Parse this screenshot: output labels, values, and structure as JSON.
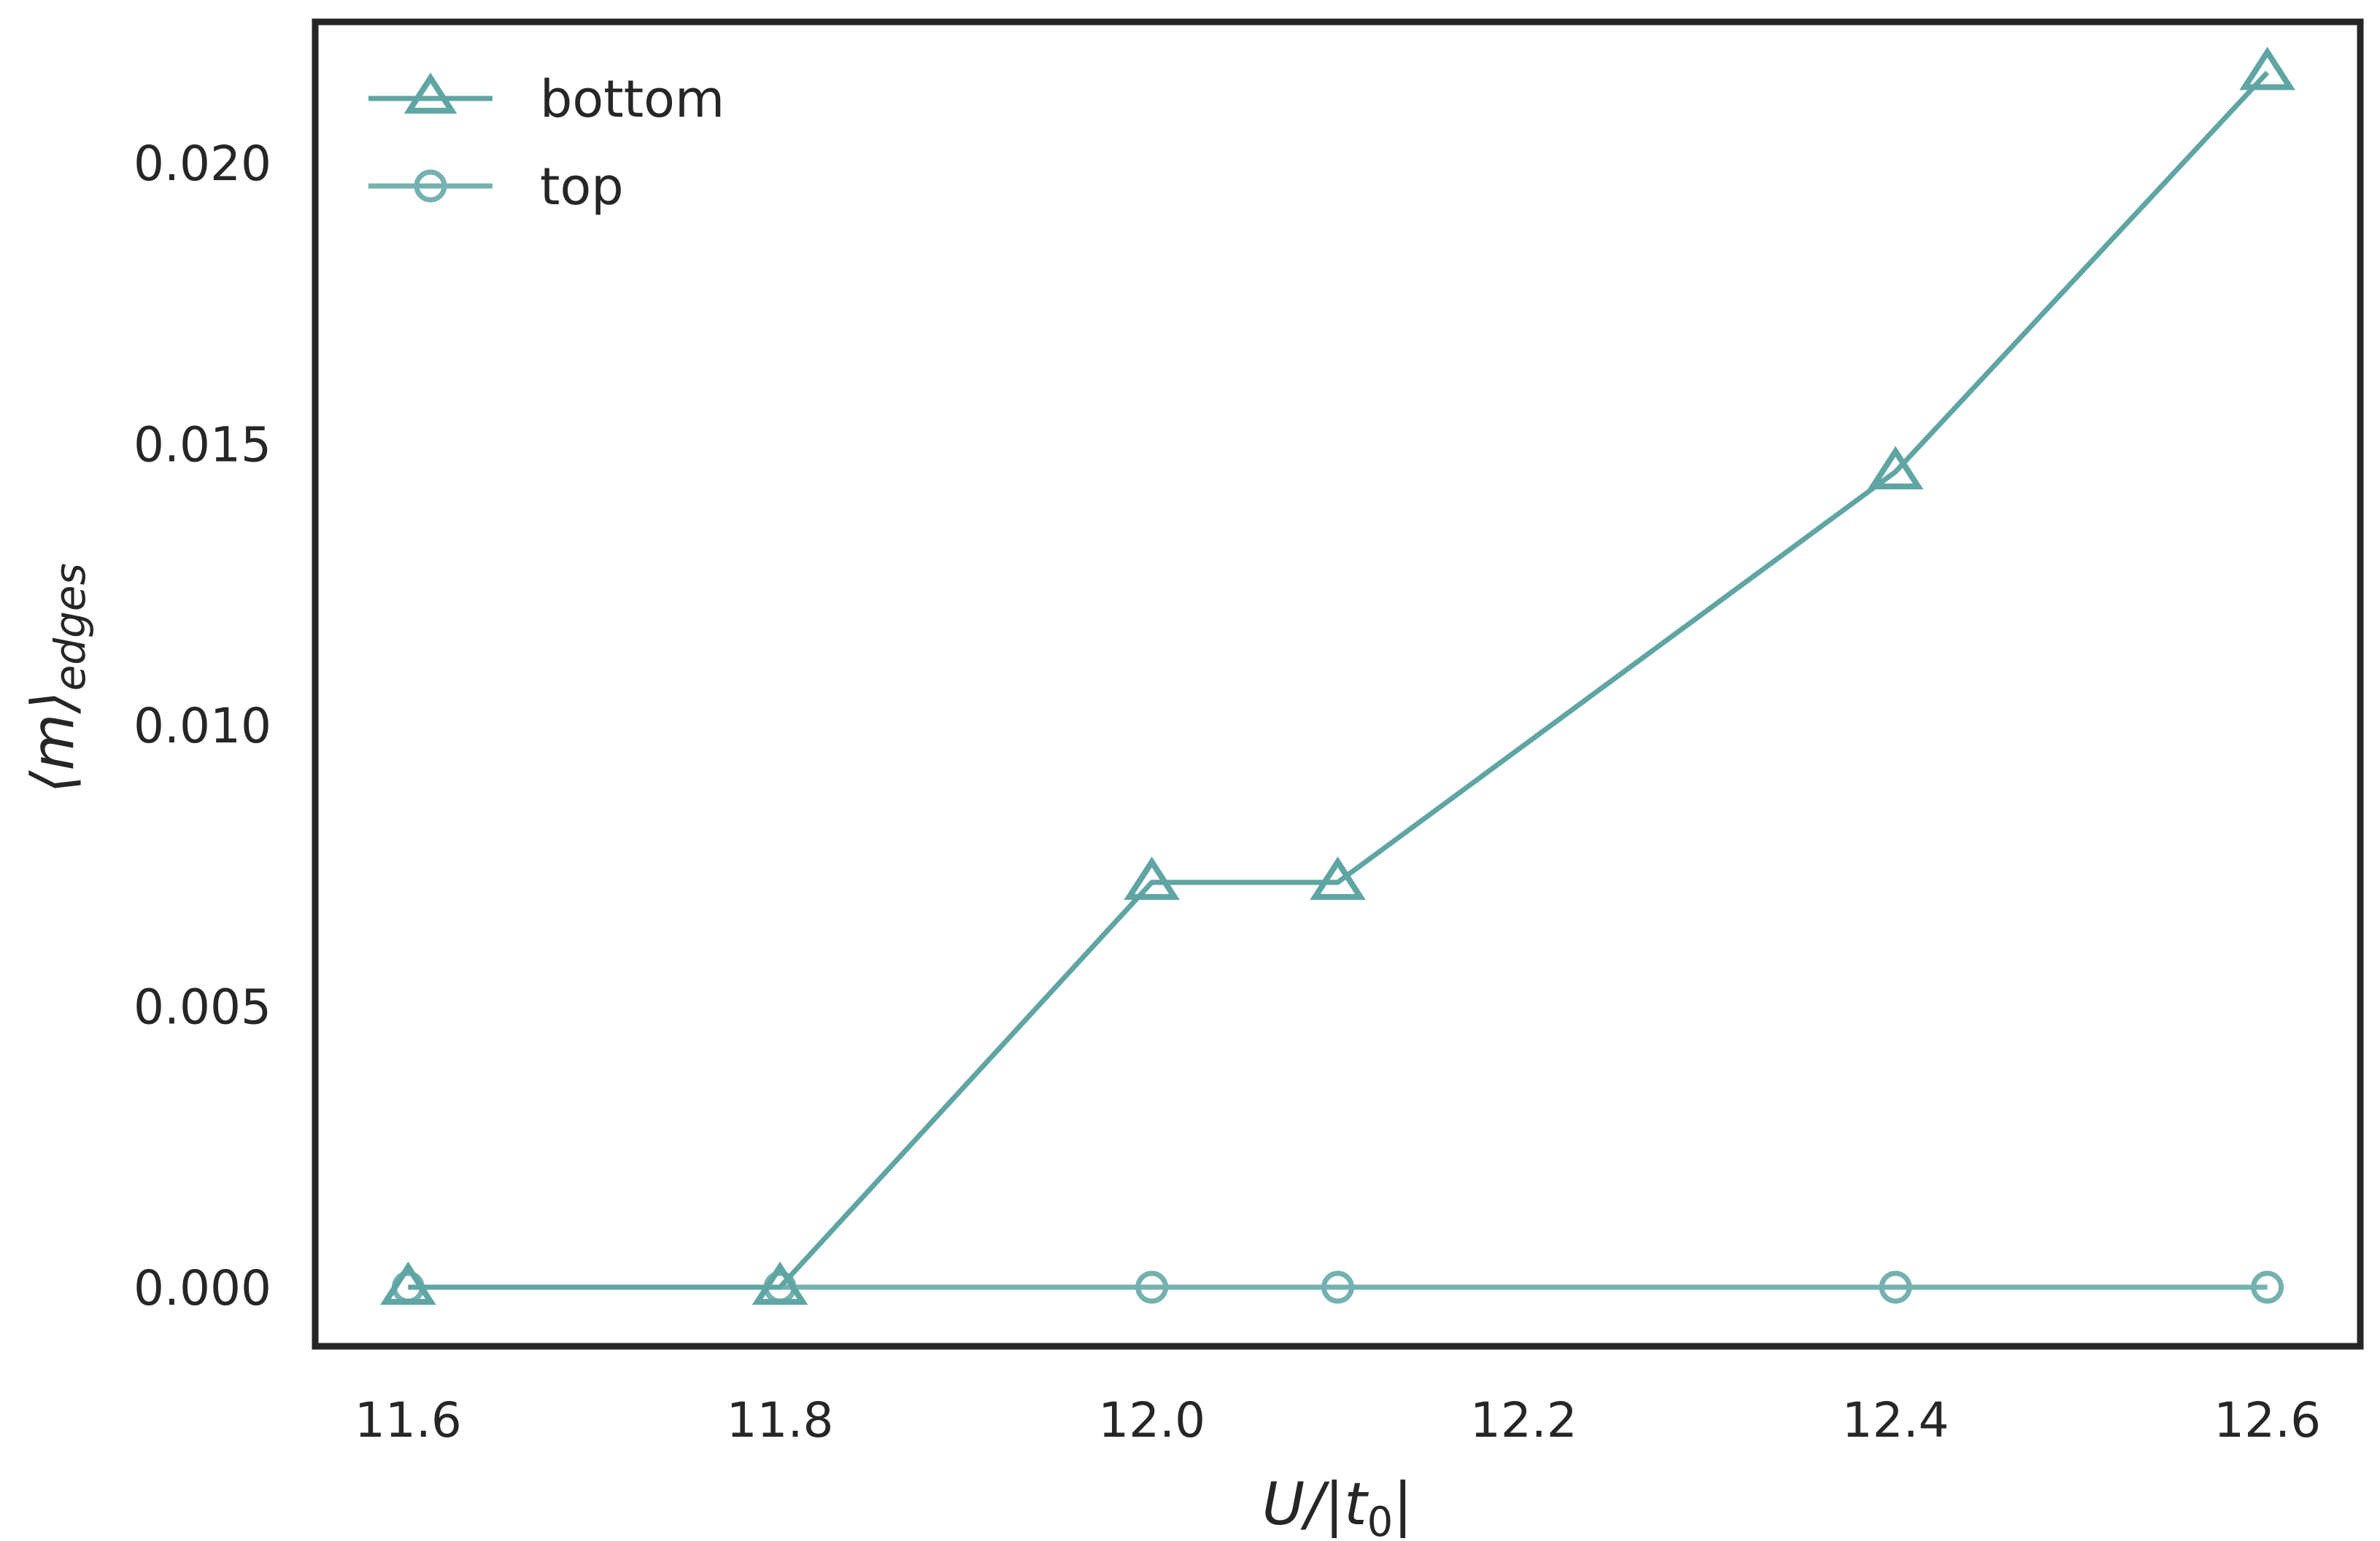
{
  "chart_data": {
    "type": "line",
    "xlabel": "U/|t0|",
    "ylabel": "⟨m⟩edges",
    "x": [
      11.6,
      11.8,
      12.0,
      12.1,
      12.4,
      12.6
    ],
    "xticks": [
      "11.6",
      "11.8",
      "12.0",
      "12.2",
      "12.4",
      "12.6"
    ],
    "yticks": [
      "0.000",
      "0.005",
      "0.010",
      "0.015",
      "0.020"
    ],
    "xlim": [
      11.55,
      12.65
    ],
    "ylim": [
      -0.00105,
      0.0225
    ],
    "grid": false,
    "legend_position": "top-left",
    "series": [
      {
        "name": "bottom",
        "marker": "triangle",
        "color": "#5fa5a3",
        "values": [
          0.0,
          0.0,
          0.0072,
          0.0072,
          0.0145,
          0.0216
        ]
      },
      {
        "name": "top",
        "marker": "circle",
        "color": "#74b1b0",
        "values": [
          0.0,
          0.0,
          0.0,
          0.0,
          0.0,
          0.0
        ]
      }
    ]
  }
}
